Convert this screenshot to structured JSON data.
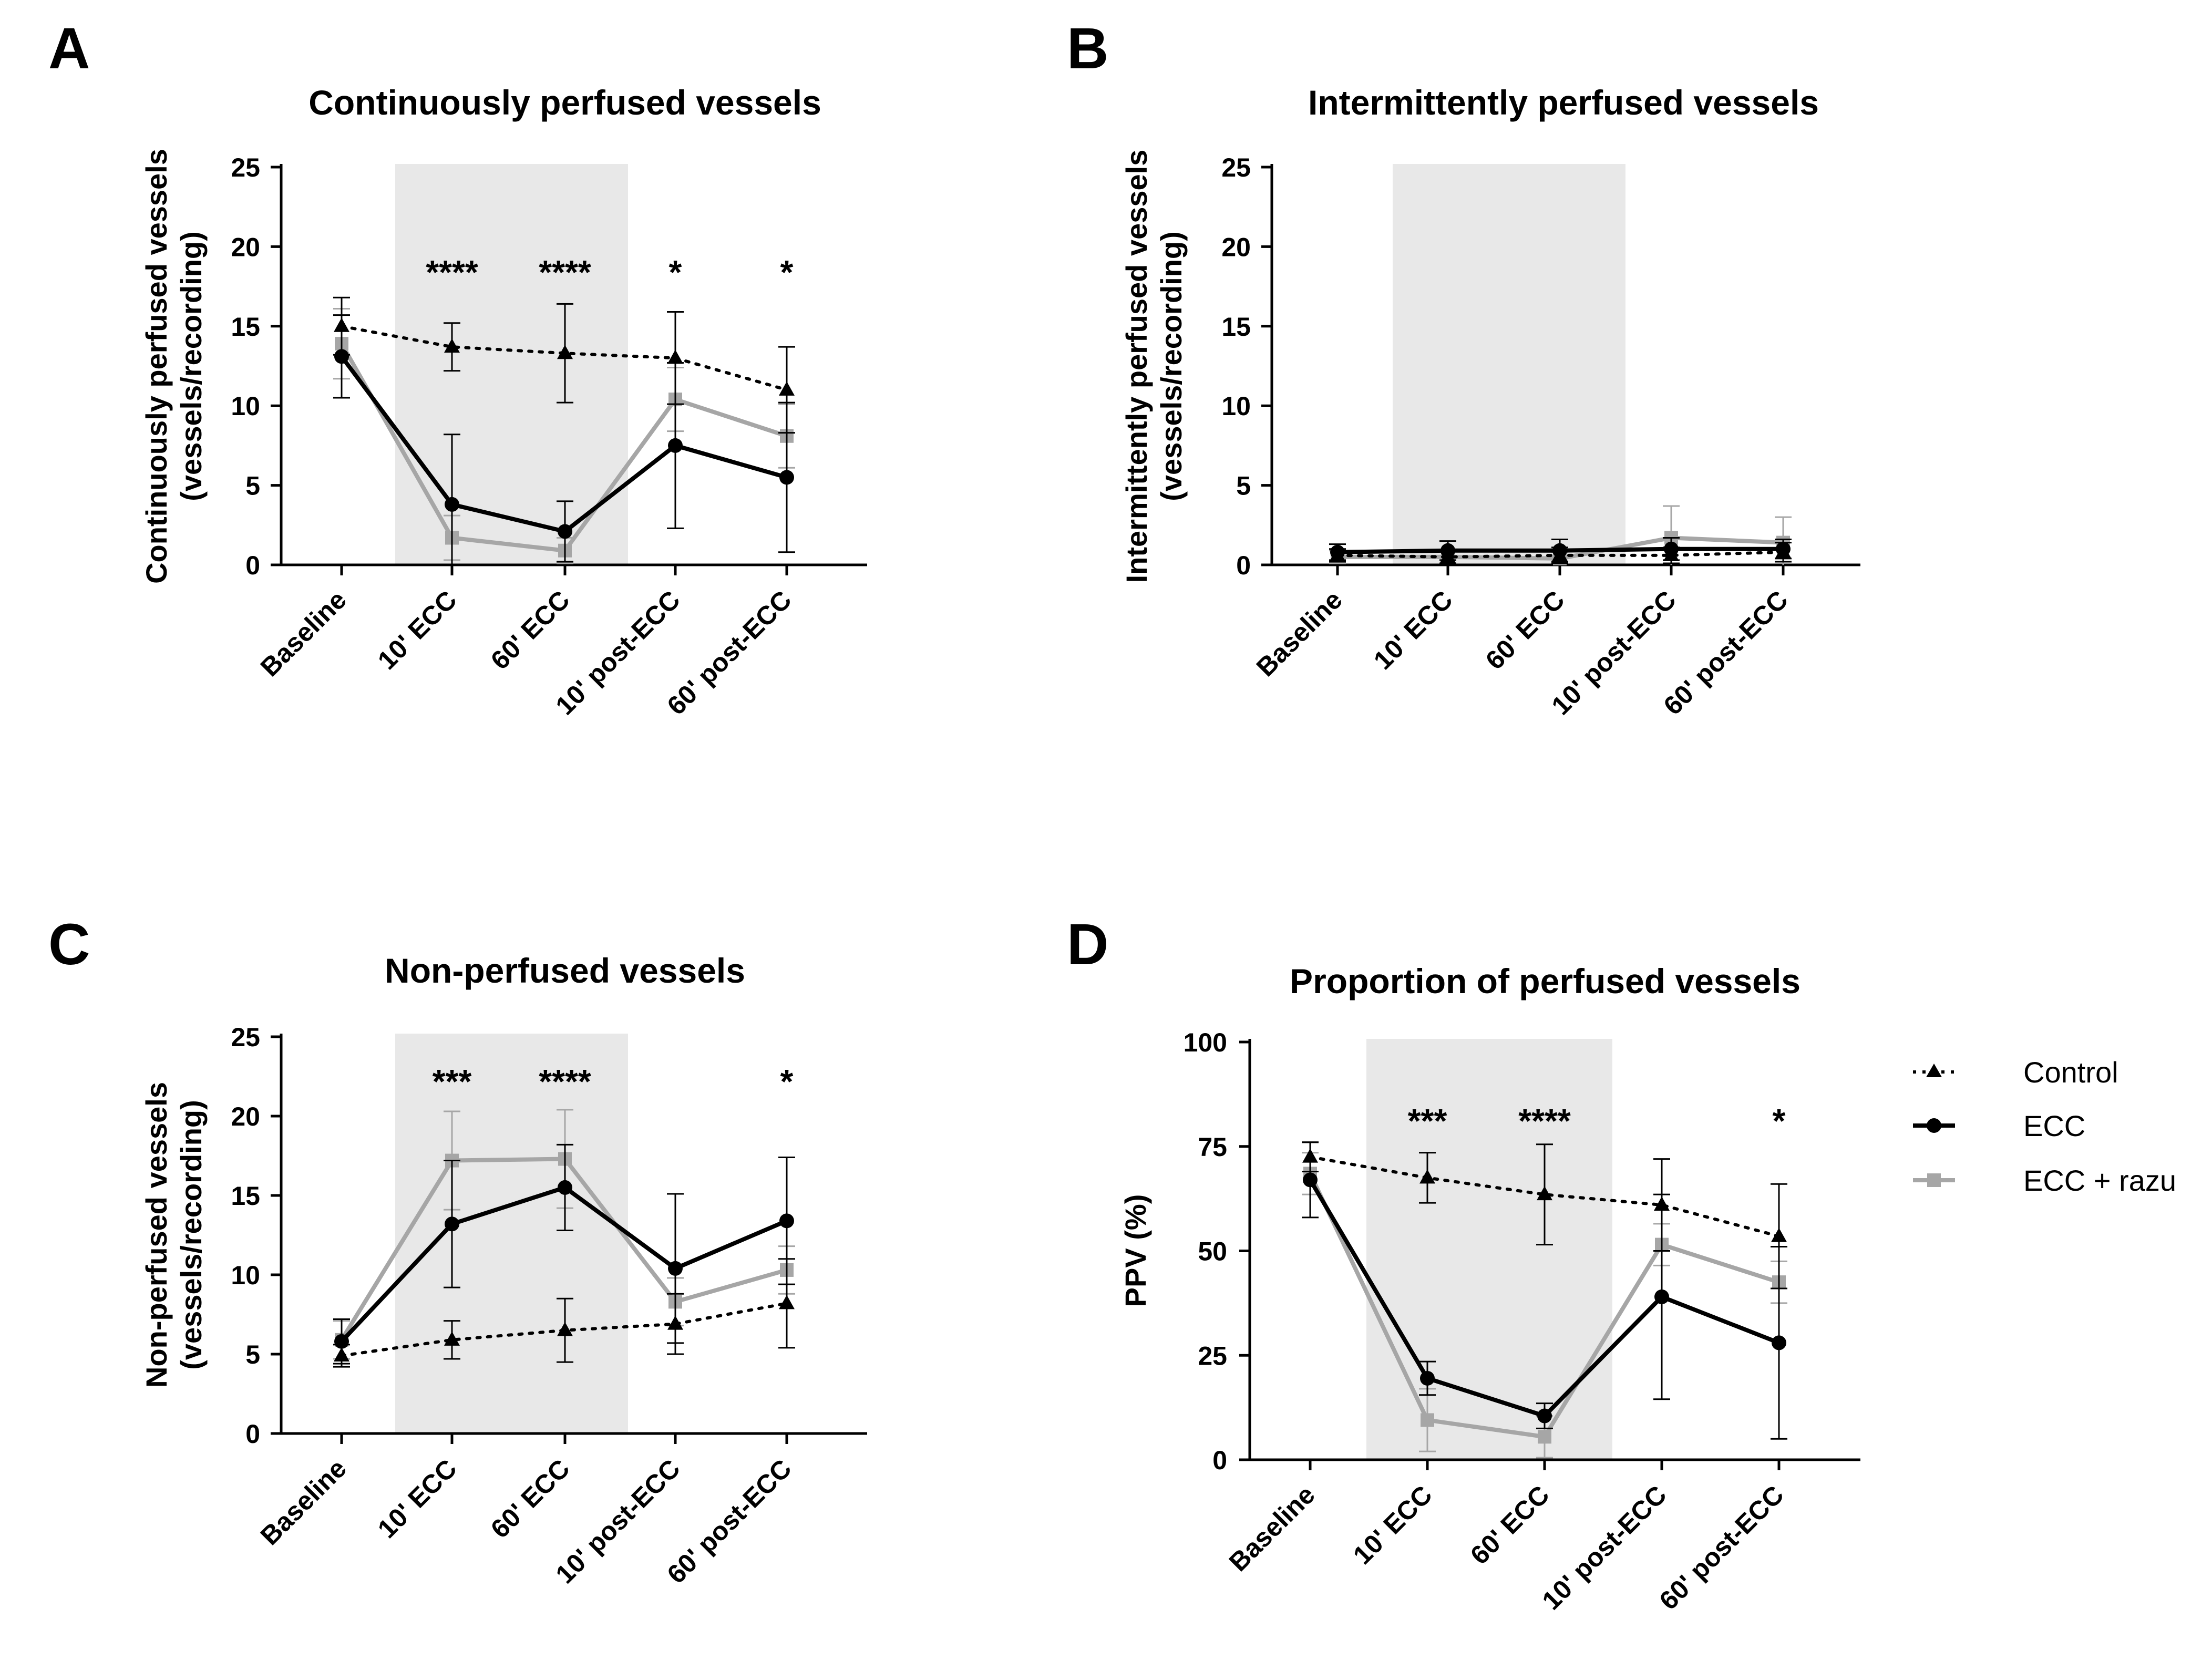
{
  "colors": {
    "control": "#000000",
    "ecc": "#000000",
    "razu": "#a6a6a6",
    "shade": "#e8e8e8"
  },
  "legend": [
    {
      "key": "control",
      "label": "Control"
    },
    {
      "key": "ecc",
      "label": "ECC"
    },
    {
      "key": "razu",
      "label": "ECC + razu"
    }
  ],
  "chart_data": [
    {
      "id": "A",
      "letter": "A",
      "type": "line",
      "title": "Continuously perfused vessels",
      "ylabel": [
        "Continuously perfused vessels",
        "(vessels/recording)"
      ],
      "xlabel": "",
      "categories": [
        "Baseline",
        "10' ECC",
        "60' ECC",
        "10' post-ECC",
        "60' post-ECC"
      ],
      "ylim": [
        0,
        25
      ],
      "yticks": [
        0,
        5,
        10,
        15,
        20,
        25
      ],
      "shaded": "10' ECC to 60' ECC",
      "series": [
        {
          "name": "Control",
          "values": [
            15.0,
            13.7,
            13.3,
            13.0,
            11.0
          ],
          "errors": [
            1.8,
            1.5,
            3.1,
            2.9,
            2.7
          ]
        },
        {
          "name": "ECC",
          "values": [
            13.1,
            3.8,
            2.1,
            7.5,
            5.5
          ],
          "errors": [
            2.6,
            4.4,
            1.9,
            5.2,
            4.7
          ]
        },
        {
          "name": "ECC + razu",
          "values": [
            13.9,
            1.7,
            0.9,
            10.4,
            8.1
          ],
          "errors": [
            2.2,
            1.4,
            0.8,
            2.0,
            2.0
          ]
        }
      ],
      "significance": [
        "",
        "****",
        "****",
        "*",
        "*"
      ]
    },
    {
      "id": "B",
      "letter": "B",
      "type": "line",
      "title": "Intermittently perfused vessels",
      "ylabel": [
        "Intermittently perfused vessels",
        "(vessels/recording)"
      ],
      "xlabel": "",
      "categories": [
        "Baseline",
        "10' ECC",
        "60' ECC",
        "10' post-ECC",
        "60' post-ECC"
      ],
      "ylim": [
        0,
        25
      ],
      "yticks": [
        0,
        5,
        10,
        15,
        20,
        25
      ],
      "shaded": "10' ECC to 60' ECC",
      "series": [
        {
          "name": "Control",
          "values": [
            0.6,
            0.5,
            0.6,
            0.6,
            0.8
          ],
          "errors": [
            0.4,
            0.4,
            0.5,
            0.5,
            0.6
          ]
        },
        {
          "name": "ECC",
          "values": [
            0.8,
            0.9,
            0.9,
            1.0,
            1.0
          ],
          "errors": [
            0.5,
            0.6,
            0.7,
            0.7,
            0.6
          ]
        },
        {
          "name": "ECC + razu",
          "values": [
            0.5,
            0.5,
            0.4,
            1.7,
            1.4
          ],
          "errors": [
            0.4,
            0.4,
            0.4,
            2.0,
            1.6
          ]
        }
      ],
      "significance": [
        "",
        "",
        "",
        "",
        ""
      ]
    },
    {
      "id": "C",
      "letter": "C",
      "type": "line",
      "title": "Non-perfused vessels",
      "ylabel": [
        "Non-perfused vessels",
        "(vessels/recording)"
      ],
      "xlabel": "",
      "categories": [
        "Baseline",
        "10' ECC",
        "60' ECC",
        "10' post-ECC",
        "60' post-ECC"
      ],
      "ylim": [
        0,
        25
      ],
      "yticks": [
        0,
        5,
        10,
        15,
        20,
        25
      ],
      "shaded": "10' ECC to 60' ECC",
      "series": [
        {
          "name": "Control",
          "values": [
            4.9,
            5.9,
            6.5,
            6.9,
            8.2
          ],
          "errors": [
            0.7,
            1.2,
            2.0,
            1.9,
            2.8
          ]
        },
        {
          "name": "ECC",
          "values": [
            5.8,
            13.2,
            15.5,
            10.4,
            13.4
          ],
          "errors": [
            1.4,
            4.0,
            2.7,
            4.7,
            4.0
          ]
        },
        {
          "name": "ECC + razu",
          "values": [
            5.9,
            17.2,
            17.3,
            8.3,
            10.3
          ],
          "errors": [
            1.2,
            3.1,
            3.1,
            1.5,
            1.5
          ]
        }
      ],
      "significance": [
        "",
        "***",
        "****",
        "",
        "*"
      ]
    },
    {
      "id": "D",
      "letter": "D",
      "type": "line",
      "title": "Proportion of perfused vessels",
      "ylabel": [
        "PPV (%)"
      ],
      "xlabel": "",
      "categories": [
        "Baseline",
        "10' ECC",
        "60' ECC",
        "10' post-ECC",
        "60' post-ECC"
      ],
      "ylim": [
        0,
        100
      ],
      "yticks": [
        0,
        25,
        50,
        75,
        100
      ],
      "shaded": "10' ECC to 60' ECC",
      "series": [
        {
          "name": "Control",
          "values": [
            72.5,
            67.5,
            63.5,
            61.0,
            53.5
          ],
          "errors": [
            3.5,
            6.0,
            12.0,
            11.0,
            12.5
          ]
        },
        {
          "name": "ECC",
          "values": [
            67.0,
            19.5,
            10.5,
            39.0,
            28.0
          ],
          "errors": [
            9.0,
            4.0,
            3.0,
            24.5,
            23.0
          ]
        },
        {
          "name": "ECC + razu",
          "values": [
            68.5,
            9.5,
            5.5,
            51.5,
            42.5
          ],
          "errors": [
            5.0,
            7.5,
            5.0,
            5.0,
            5.0
          ]
        }
      ],
      "significance": [
        "",
        "***",
        "****",
        "",
        "*"
      ]
    }
  ]
}
